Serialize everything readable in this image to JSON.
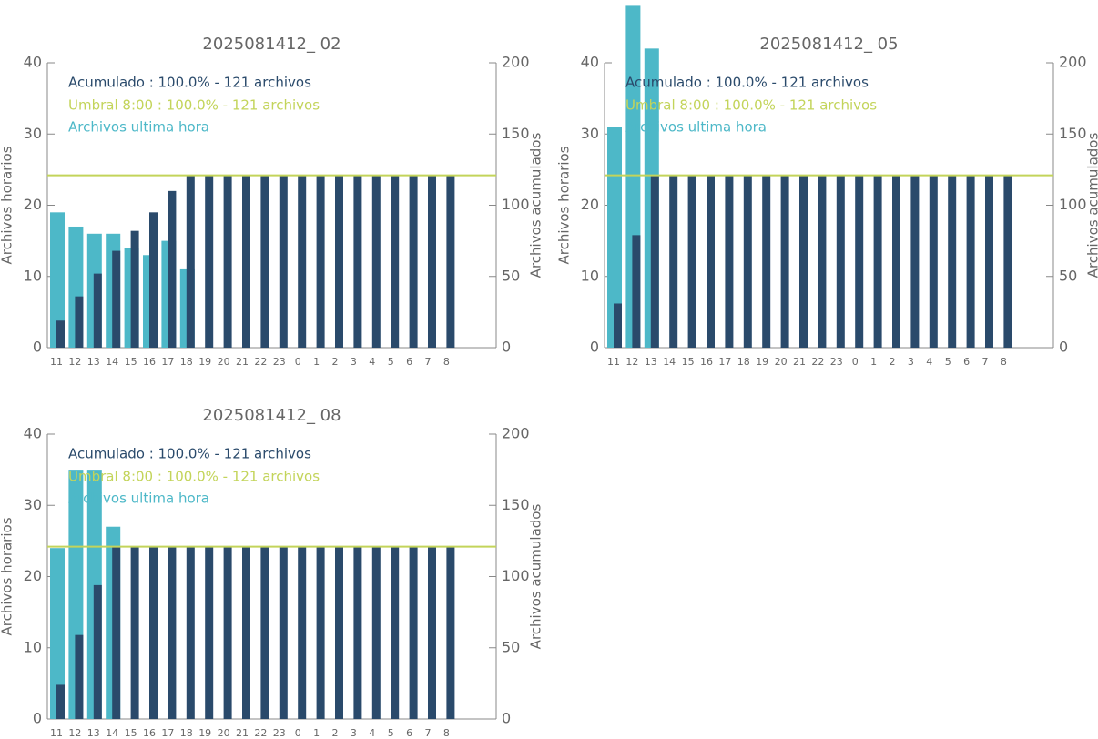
{
  "chart_data": [
    {
      "type": "bar",
      "title": "2025081412_ 02",
      "y_label": "Archivos horarios",
      "y2_label": "Archivos acumulados",
      "categories": [
        "11",
        "12",
        "13",
        "14",
        "15",
        "16",
        "17",
        "18",
        "19",
        "20",
        "21",
        "22",
        "23",
        "0",
        "1",
        "2",
        "3",
        "4",
        "5",
        "6",
        "7",
        "8"
      ],
      "ylim": [
        0,
        40
      ],
      "yticks": [
        0,
        10,
        20,
        30,
        40
      ],
      "y2lim": [
        0,
        200
      ],
      "y2ticks": [
        0,
        50,
        100,
        150,
        200
      ],
      "series": [
        {
          "name": "Archivos ultima hora",
          "color": "#4db8c8",
          "values": [
            19,
            17,
            16,
            16,
            14,
            13,
            15,
            11,
            null,
            null,
            null,
            null,
            null,
            null,
            null,
            null,
            null,
            null,
            null,
            null,
            null,
            null
          ]
        },
        {
          "name": "Acumulado : 100.0% - 121 archivos",
          "color": "#2a4a6b",
          "axis": "y2",
          "values": [
            19,
            36,
            52,
            68,
            82,
            95,
            110,
            121,
            121,
            121,
            121,
            121,
            121,
            121,
            121,
            121,
            121,
            121,
            121,
            121,
            121,
            121
          ]
        }
      ],
      "threshold": {
        "label": "Umbral 8:00 : 100.0% - 121 archivos",
        "value": 121,
        "axis": "y2",
        "color": "#c3d45a"
      }
    },
    {
      "type": "bar",
      "title": "2025081412_ 05",
      "y_label": "Archivos horarios",
      "y2_label": "Archivos acumulados",
      "categories": [
        "11",
        "12",
        "13",
        "14",
        "15",
        "16",
        "17",
        "18",
        "19",
        "20",
        "21",
        "22",
        "23",
        "0",
        "1",
        "2",
        "3",
        "4",
        "5",
        "6",
        "7",
        "8"
      ],
      "ylim": [
        0,
        40
      ],
      "yticks": [
        0,
        10,
        20,
        30,
        40
      ],
      "y2lim": [
        0,
        200
      ],
      "y2ticks": [
        0,
        50,
        100,
        150,
        200
      ],
      "series": [
        {
          "name": "Archivos ultima hora",
          "color": "#4db8c8",
          "values": [
            31,
            48,
            42,
            null,
            null,
            null,
            null,
            null,
            null,
            null,
            null,
            null,
            null,
            null,
            null,
            null,
            null,
            null,
            null,
            null,
            null,
            null
          ]
        },
        {
          "name": "Acumulado : 100.0% - 121 archivos",
          "color": "#2a4a6b",
          "axis": "y2",
          "values": [
            31,
            79,
            121,
            121,
            121,
            121,
            121,
            121,
            121,
            121,
            121,
            121,
            121,
            121,
            121,
            121,
            121,
            121,
            121,
            121,
            121,
            121
          ]
        }
      ],
      "threshold": {
        "label": "Umbral 8:00 : 100.0% - 121 archivos",
        "value": 121,
        "axis": "y2",
        "color": "#c3d45a"
      }
    },
    {
      "type": "bar",
      "title": "2025081412_ 08",
      "y_label": "Archivos horarios",
      "y2_label": "Archivos acumulados",
      "categories": [
        "11",
        "12",
        "13",
        "14",
        "15",
        "16",
        "17",
        "18",
        "19",
        "20",
        "21",
        "22",
        "23",
        "0",
        "1",
        "2",
        "3",
        "4",
        "5",
        "6",
        "7",
        "8"
      ],
      "ylim": [
        0,
        40
      ],
      "yticks": [
        0,
        10,
        20,
        30,
        40
      ],
      "y2lim": [
        0,
        200
      ],
      "y2ticks": [
        0,
        50,
        100,
        150,
        200
      ],
      "series": [
        {
          "name": "Archivos ultima hora",
          "color": "#4db8c8",
          "values": [
            24,
            35,
            35,
            27,
            null,
            null,
            null,
            null,
            null,
            null,
            null,
            null,
            null,
            null,
            null,
            null,
            null,
            null,
            null,
            null,
            null,
            null
          ]
        },
        {
          "name": "Acumulado : 100.0% - 121 archivos",
          "color": "#2a4a6b",
          "axis": "y2",
          "values": [
            24,
            59,
            94,
            121,
            121,
            121,
            121,
            121,
            121,
            121,
            121,
            121,
            121,
            121,
            121,
            121,
            121,
            121,
            121,
            121,
            121,
            121
          ]
        }
      ],
      "threshold": {
        "label": "Umbral 8:00 : 100.0% - 121 archivos",
        "value": 121,
        "axis": "y2",
        "color": "#c3d45a"
      }
    }
  ]
}
